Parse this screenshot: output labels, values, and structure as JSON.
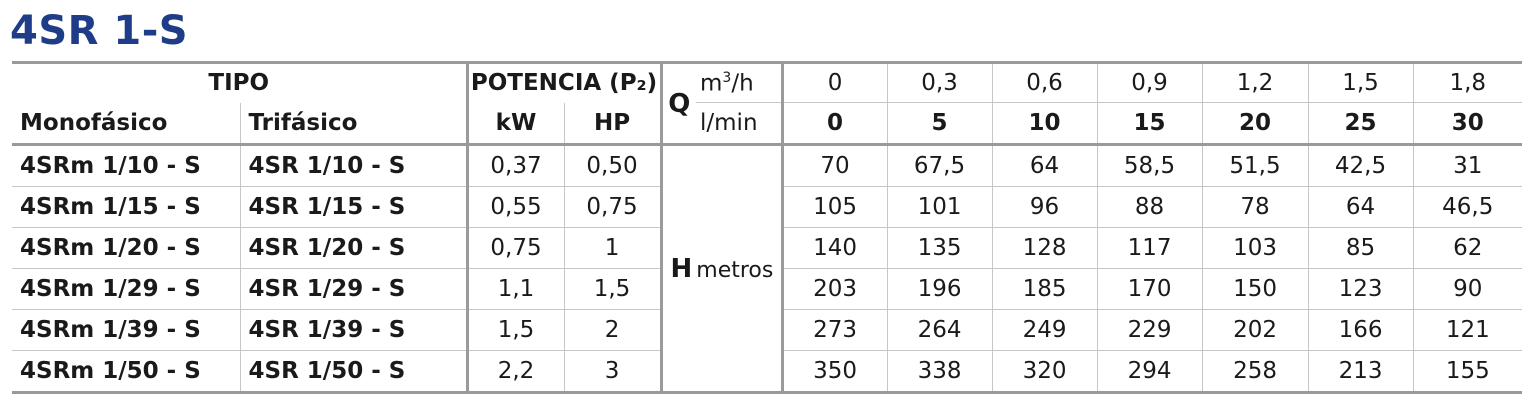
{
  "title": "4SR 1-S",
  "header": {
    "tipo": "TIPO",
    "potencia": "POTENCIA (P₂)",
    "mono": "Monofásico",
    "tri": "Trifásico",
    "kw": "kW",
    "hp": "HP",
    "q": "Q",
    "h": "H",
    "unit_m3h_base": "m",
    "unit_m3h_exp": "3",
    "unit_m3h_tail": "/h",
    "unit_lmin": "l/min",
    "unit_h": "metros"
  },
  "flow_m3h": [
    "0",
    "0,3",
    "0,6",
    "0,9",
    "1,2",
    "1,5",
    "1,8"
  ],
  "flow_lmin": [
    "0",
    "5",
    "10",
    "15",
    "20",
    "25",
    "30"
  ],
  "rows": [
    {
      "mono": "4SRm 1/10 - S",
      "tri": "4SR 1/10 - S",
      "kw": "0,37",
      "hp": "0,50",
      "h": [
        "70",
        "67,5",
        "64",
        "58,5",
        "51,5",
        "42,5",
        "31"
      ]
    },
    {
      "mono": "4SRm 1/15 - S",
      "tri": "4SR 1/15 - S",
      "kw": "0,55",
      "hp": "0,75",
      "h": [
        "105",
        "101",
        "96",
        "88",
        "78",
        "64",
        "46,5"
      ]
    },
    {
      "mono": "4SRm 1/20 - S",
      "tri": "4SR 1/20 - S",
      "kw": "0,75",
      "hp": "1",
      "h": [
        "140",
        "135",
        "128",
        "117",
        "103",
        "85",
        "62"
      ]
    },
    {
      "mono": "4SRm 1/29 - S",
      "tri": "4SR 1/29 - S",
      "kw": "1,1",
      "hp": "1,5",
      "h": [
        "203",
        "196",
        "185",
        "170",
        "150",
        "123",
        "90"
      ]
    },
    {
      "mono": "4SRm 1/39 - S",
      "tri": "4SR 1/39 - S",
      "kw": "1,5",
      "hp": "2",
      "h": [
        "273",
        "264",
        "249",
        "229",
        "202",
        "166",
        "121"
      ]
    },
    {
      "mono": "4SRm 1/50 - S",
      "tri": "4SR 1/50 - S",
      "kw": "2,2",
      "hp": "3",
      "h": [
        "350",
        "338",
        "320",
        "294",
        "258",
        "213",
        "155"
      ]
    }
  ],
  "colors": {
    "title": "#1f3c88",
    "rule_heavy": "#9a9a9a",
    "rule_light": "#c6c6c6"
  }
}
